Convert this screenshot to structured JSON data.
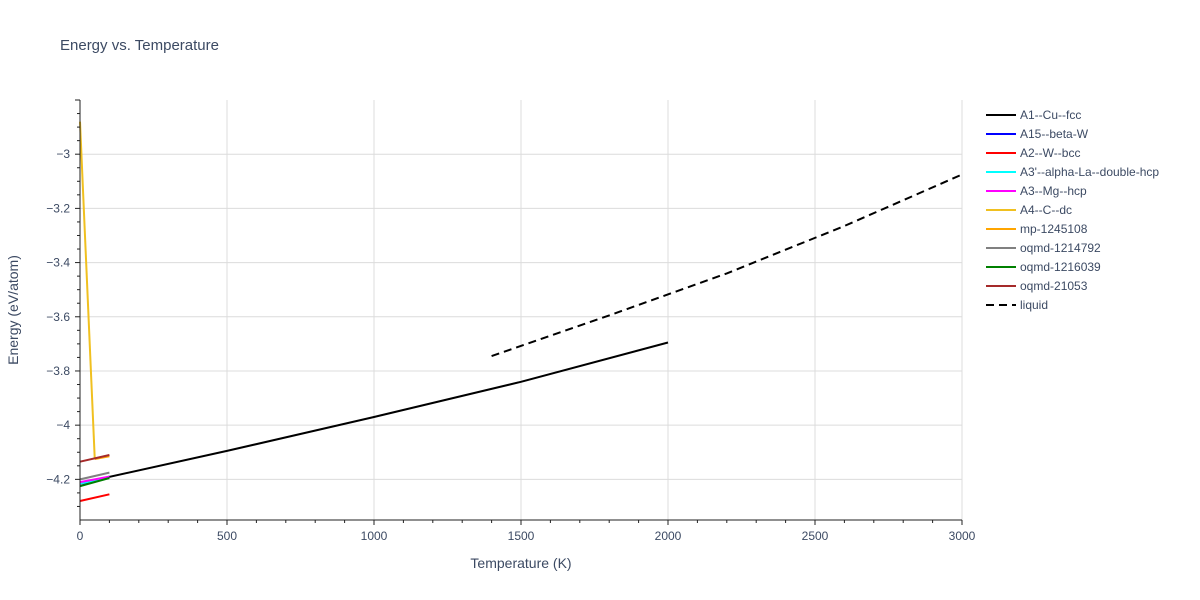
{
  "chart_data": {
    "type": "line",
    "title": "Energy vs. Temperature",
    "xlabel": "Temperature (K)",
    "ylabel": "Energy (eV/atom)",
    "xlim": [
      0,
      3000
    ],
    "ylim": [
      -4.35,
      -2.8
    ],
    "x_ticks": [
      0,
      500,
      1000,
      1500,
      2000,
      2500,
      3000
    ],
    "y_ticks": [
      -4.2,
      -4.0,
      -3.8,
      -3.6,
      -3.4,
      -3.2,
      -3.0
    ],
    "y_tick_labels": [
      "−4.2",
      "−4",
      "−3.8",
      "−3.6",
      "−3.4",
      "−3.2",
      "−3"
    ],
    "grid": true,
    "legend_position": "right",
    "series": [
      {
        "name": "A1--Cu--fcc",
        "color": "#000000",
        "dash": "solid",
        "x": [
          0,
          500,
          1000,
          1500,
          2000
        ],
        "y": [
          -4.215,
          -4.095,
          -3.97,
          -3.84,
          -3.695
        ]
      },
      {
        "name": "A15--beta-W",
        "color": "#0000ff",
        "dash": "solid",
        "x": [
          0,
          100
        ],
        "y": [
          -4.225,
          -4.19
        ]
      },
      {
        "name": "A2--W--bcc",
        "color": "#ff0000",
        "dash": "solid",
        "x": [
          0,
          100
        ],
        "y": [
          -4.28,
          -4.255
        ]
      },
      {
        "name": "A3'--alpha-La--double-hcp",
        "color": "#00ffff",
        "dash": "solid",
        "x": [
          0,
          100
        ],
        "y": [
          -4.215,
          -4.195
        ]
      },
      {
        "name": "A3--Mg--hcp",
        "color": "#ff00ff",
        "dash": "solid",
        "x": [
          0,
          100
        ],
        "y": [
          -4.21,
          -4.19
        ]
      },
      {
        "name": "A4--C--dc",
        "color": "#f0c020",
        "dash": "solid",
        "x": [
          0,
          50
        ],
        "y": [
          -2.88,
          -4.12
        ]
      },
      {
        "name": "mp-1245108",
        "color": "#ffa500",
        "dash": "solid",
        "x": [
          50,
          100
        ],
        "y": [
          -4.125,
          -4.115
        ]
      },
      {
        "name": "oqmd-1214792",
        "color": "#808080",
        "dash": "solid",
        "x": [
          0,
          100
        ],
        "y": [
          -4.2,
          -4.175
        ]
      },
      {
        "name": "oqmd-1216039",
        "color": "#008000",
        "dash": "solid",
        "x": [
          0,
          100
        ],
        "y": [
          -4.225,
          -4.195
        ]
      },
      {
        "name": "oqmd-21053",
        "color": "#a52a2a",
        "dash": "solid",
        "x": [
          0,
          100
        ],
        "y": [
          -4.135,
          -4.11
        ]
      },
      {
        "name": "liquid",
        "color": "#000000",
        "dash": "dashed",
        "x": [
          1400,
          1800,
          2200,
          2600,
          3000
        ],
        "y": [
          -3.745,
          -3.595,
          -3.44,
          -3.265,
          -3.075
        ]
      }
    ]
  }
}
